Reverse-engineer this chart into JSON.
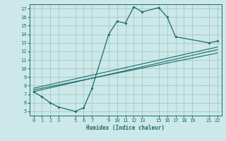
{
  "background_color": "#cce8e8",
  "grid_color": "#aacccc",
  "line_color": "#1a6b6b",
  "xlabel": "Humidex (Indice chaleur)",
  "xlim": [
    -0.5,
    22.5
  ],
  "ylim": [
    4.5,
    17.5
  ],
  "xticks": [
    0,
    1,
    2,
    3,
    5,
    6,
    7,
    9,
    10,
    11,
    12,
    13,
    15,
    16,
    17,
    18,
    19,
    21,
    22
  ],
  "yticks": [
    5,
    6,
    7,
    8,
    9,
    10,
    11,
    12,
    13,
    14,
    15,
    16,
    17
  ],
  "lines": [
    {
      "x": [
        0,
        1,
        2,
        3,
        5,
        6,
        7,
        9,
        10,
        11,
        12,
        13,
        15,
        16,
        17,
        21,
        22
      ],
      "y": [
        7.3,
        6.7,
        6.0,
        5.5,
        5.0,
        5.4,
        7.7,
        14.0,
        15.5,
        15.3,
        17.2,
        16.6,
        17.1,
        16.0,
        13.7,
        13.0,
        13.2
      ]
    },
    {
      "x": [
        0,
        22
      ],
      "y": [
        7.3,
        12.2
      ]
    },
    {
      "x": [
        0,
        22
      ],
      "y": [
        7.5,
        11.8
      ]
    },
    {
      "x": [
        0,
        22
      ],
      "y": [
        7.7,
        12.5
      ]
    }
  ]
}
